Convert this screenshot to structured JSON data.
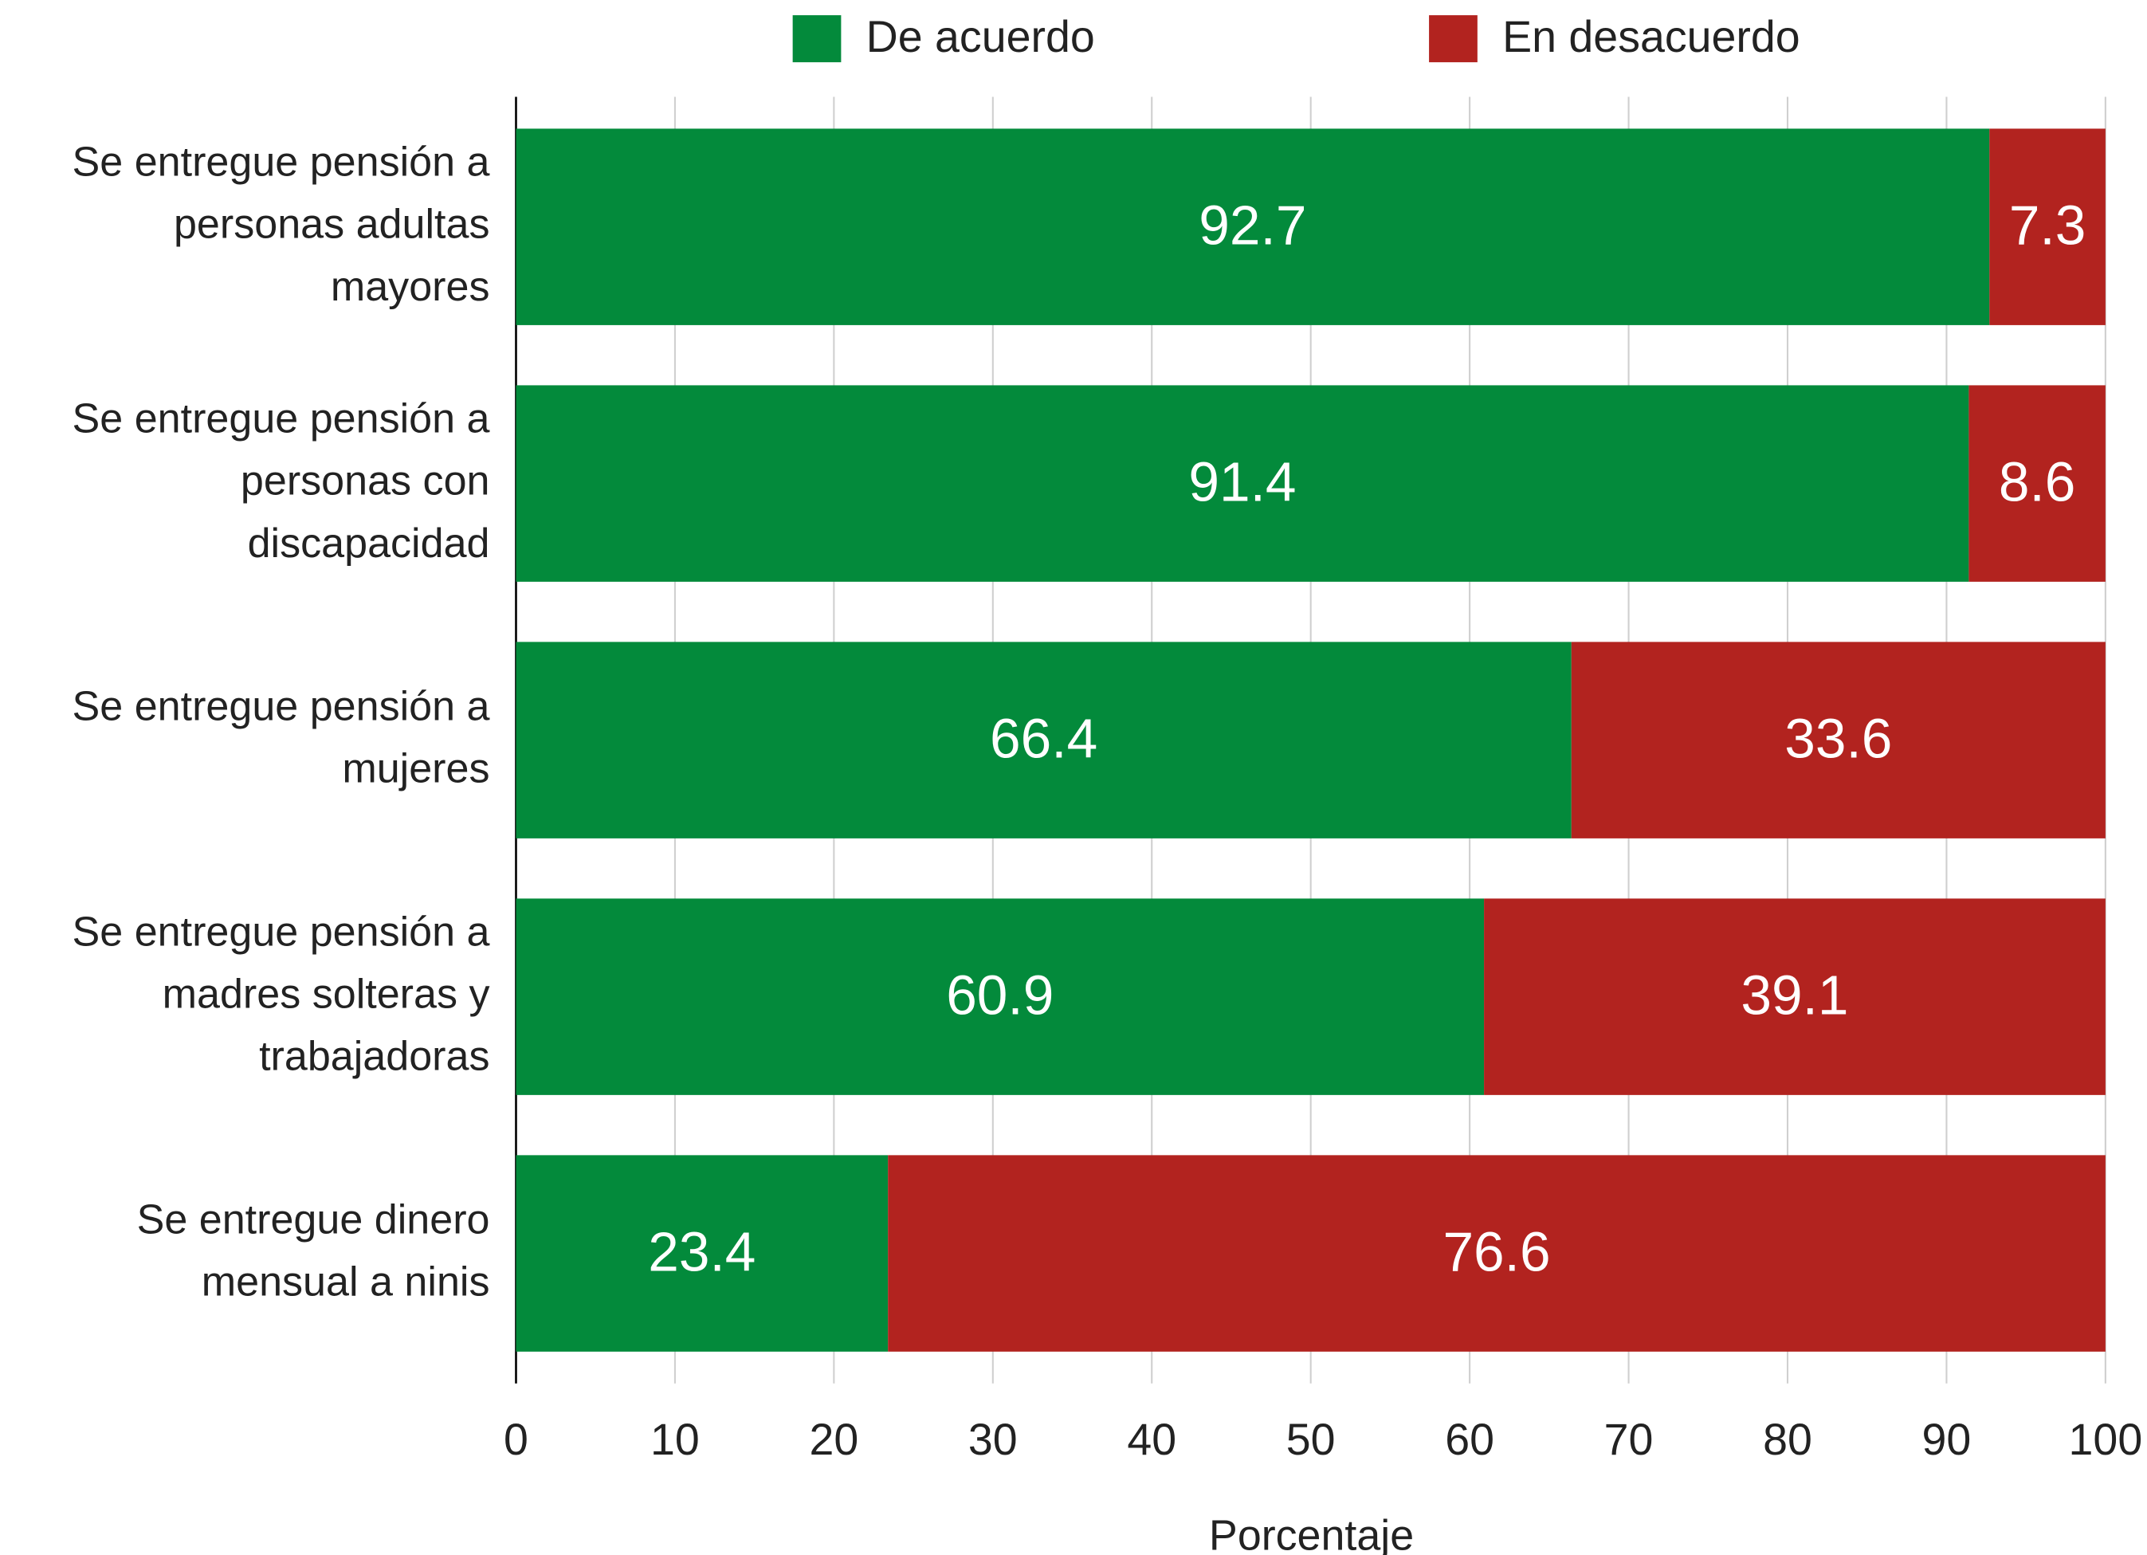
{
  "chart_data": {
    "type": "stacked-barh",
    "categories": [
      "Se entregue pensión a personas adultas mayores",
      "Se entregue pensión a personas con discapacidad",
      "Se entregue pensión a mujeres",
      "Se entregue pensión a madres solteras y trabajadoras",
      "Se entregue dinero mensual a ninis"
    ],
    "series": [
      {
        "name": "De acuerdo",
        "color": "#038a3b",
        "values": [
          92.7,
          91.4,
          66.4,
          60.9,
          23.4
        ]
      },
      {
        "name": "En desacuerdo",
        "color": "#b2231f",
        "values": [
          7.3,
          8.6,
          33.6,
          39.1,
          76.6
        ]
      }
    ],
    "xlabel": "Porcentaje",
    "xlim": [
      0,
      100
    ],
    "xticks": [
      0,
      10,
      20,
      30,
      40,
      50,
      60,
      70,
      80,
      90,
      100
    ],
    "grid": true,
    "legend": "top"
  }
}
